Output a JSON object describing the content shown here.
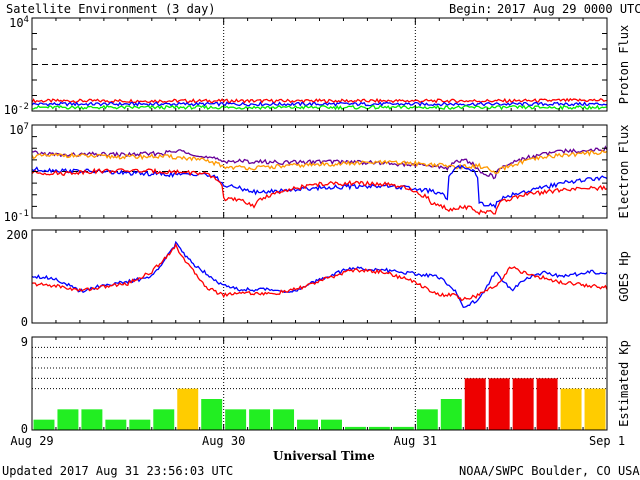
{
  "header": {
    "title": "Satellite Environment (3 day)",
    "begin_label": "Begin:",
    "begin_value": "2017 Aug 29 0000 UTC"
  },
  "footer": {
    "updated": "Updated 2017 Aug 31 23:56:03 UTC",
    "credit": "NOAA/SWPC Boulder, CO USA"
  },
  "x_axis": {
    "label": "Universal Time",
    "ticks": [
      "Aug 29",
      "Aug 30",
      "Aug 31",
      "Sep 1"
    ]
  },
  "colors": {
    "red": "#ff0000",
    "blue": "#0000ff",
    "green": "#00ee00",
    "purple": "#660099",
    "orange": "#ff9900",
    "kp_green": "#22ee22",
    "kp_yellow": "#ffcc00",
    "kp_red": "#ee0000"
  },
  "chart_data": [
    {
      "type": "line",
      "panel": "proton",
      "ylabel": "Proton Flux",
      "y_scale": "log",
      "ylim": [
        0.01,
        10000
      ],
      "y_tick_labels": [
        "10^4",
        "10^-2"
      ],
      "threshold": 10,
      "x": [
        0,
        12,
        24,
        36,
        48,
        60,
        72
      ],
      "series": [
        {
          "color": "red",
          "values": [
            0.045,
            0.045,
            0.045,
            0.045,
            0.045,
            0.045,
            0.05
          ]
        },
        {
          "color": "blue",
          "values": [
            0.028,
            0.028,
            0.028,
            0.028,
            0.028,
            0.028,
            0.028
          ]
        },
        {
          "color": "green",
          "values": [
            0.017,
            0.017,
            0.017,
            0.017,
            0.017,
            0.017,
            0.017
          ]
        }
      ]
    },
    {
      "type": "line",
      "panel": "electron",
      "ylabel": "Electron Flux",
      "y_scale": "log",
      "ylim": [
        0.1,
        10000000
      ],
      "y_tick_labels": [
        "10^7",
        "10^-1"
      ],
      "threshold": 1000,
      "x": [
        0,
        4,
        8,
        12,
        16,
        19,
        21,
        24,
        28,
        32,
        36,
        40,
        44,
        48,
        50,
        52,
        54,
        56,
        58,
        60,
        62,
        64,
        66,
        68,
        72
      ],
      "series": [
        {
          "color": "purple",
          "values": [
            40000,
            25000,
            30000,
            28000,
            35000,
            60000,
            18000,
            8000,
            7000,
            6000,
            7000,
            7000,
            5000,
            3500,
            3000,
            2000,
            10000,
            800,
            300,
            5000,
            15000,
            30000,
            50000,
            60000,
            90000
          ]
        },
        {
          "color": "orange",
          "values": [
            20000,
            25000,
            20000,
            18000,
            20000,
            15000,
            10000,
            2500,
            2000,
            3000,
            4000,
            5000,
            6000,
            5000,
            4000,
            3000,
            2500,
            3000,
            500,
            3000,
            8000,
            15000,
            25000,
            30000,
            50000
          ]
        },
        {
          "color": "blue",
          "values": [
            1500,
            1200,
            1000,
            700,
            600,
            500,
            700,
            60,
            15,
            25,
            40,
            50,
            60,
            30,
            20,
            5,
            3000,
            2,
            1,
            10,
            20,
            40,
            80,
            150,
            300
          ]
        },
        {
          "color": "red",
          "values": [
            800,
            700,
            1100,
            1200,
            1000,
            900,
            700,
            5,
            1,
            20,
            80,
            100,
            80,
            15,
            2,
            0.5,
            1,
            0.3,
            0.3,
            5,
            10,
            15,
            25,
            30,
            40
          ]
        }
      ]
    },
    {
      "type": "line",
      "panel": "goes_hp",
      "ylabel": "GOES Hp",
      "ylim": [
        0,
        200
      ],
      "y_tick_labels": [
        "200",
        "0"
      ],
      "x": [
        0,
        3,
        6,
        9,
        12,
        15,
        18,
        20,
        22,
        24,
        26,
        30,
        33,
        36,
        40,
        44,
        48,
        51,
        53,
        54,
        56,
        58,
        60,
        62,
        64,
        66,
        68,
        70,
        72
      ],
      "series": [
        {
          "color": "blue",
          "values": [
            102,
            95,
            68,
            82,
            88,
            100,
            170,
            130,
            105,
            80,
            72,
            72,
            67,
            94,
            118,
            114,
            106,
            98,
            70,
            35,
            50,
            110,
            70,
            96,
            108,
            102,
            104,
            110,
            108
          ]
        },
        {
          "color": "red",
          "values": [
            84,
            80,
            70,
            78,
            85,
            110,
            165,
            115,
            75,
            60,
            66,
            62,
            72,
            90,
            114,
            110,
            88,
            60,
            60,
            50,
            60,
            80,
            120,
            105,
            97,
            88,
            85,
            80,
            76
          ]
        }
      ]
    },
    {
      "type": "bar",
      "panel": "kp",
      "ylabel": "Estimated Kp",
      "ylim": [
        0,
        9
      ],
      "y_tick_labels": [
        "9",
        "0"
      ],
      "categories": [
        "0",
        "3",
        "6",
        "9",
        "12",
        "15",
        "18",
        "21",
        "24",
        "27",
        "30",
        "33",
        "36",
        "39",
        "42",
        "45",
        "48",
        "51",
        "54",
        "57",
        "60",
        "63",
        "66",
        "69"
      ],
      "values": [
        1,
        2,
        2,
        1,
        1,
        2,
        4,
        3,
        2,
        2,
        2,
        1,
        1,
        0.3,
        0.3,
        0.3,
        2,
        3,
        5,
        5,
        5,
        5,
        4,
        4
      ],
      "bar_colors": [
        "kp_green",
        "kp_green",
        "kp_green",
        "kp_green",
        "kp_green",
        "kp_green",
        "kp_yellow",
        "kp_green",
        "kp_green",
        "kp_green",
        "kp_green",
        "kp_green",
        "kp_green",
        "kp_green",
        "kp_green",
        "kp_green",
        "kp_green",
        "kp_green",
        "kp_red",
        "kp_red",
        "kp_red",
        "kp_red",
        "kp_yellow",
        "kp_yellow"
      ]
    }
  ]
}
